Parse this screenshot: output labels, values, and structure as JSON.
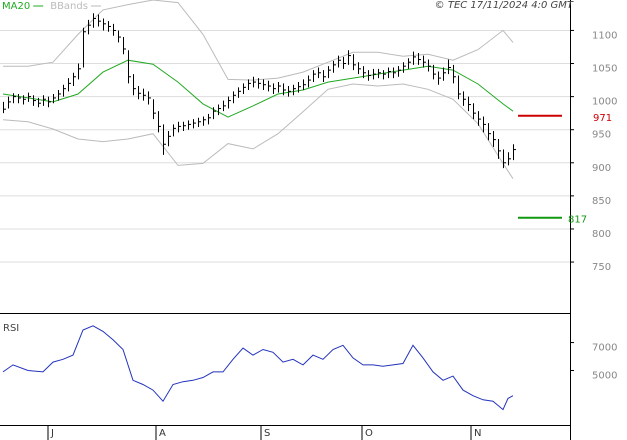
{
  "chart_data": [
    {
      "type": "ohlc",
      "annotation": "© TEC 17/11/2024 4:0 GMT",
      "x": [
        0,
        1,
        2,
        3,
        4,
        5,
        6,
        7,
        8,
        9,
        10,
        11,
        12,
        13,
        14,
        15,
        16,
        17,
        18,
        19,
        20,
        21,
        22,
        23,
        24,
        25,
        26,
        27,
        28,
        29,
        30,
        31,
        32,
        33,
        34,
        35,
        36,
        37,
        38,
        39,
        40,
        41,
        42,
        43,
        44,
        45,
        46,
        47,
        48,
        49,
        50,
        51,
        52,
        53,
        54,
        55,
        56,
        57,
        58,
        59,
        60,
        61,
        62,
        63,
        64,
        65,
        66,
        67,
        68,
        69,
        70,
        71,
        72,
        73,
        74,
        75,
        76,
        77,
        78,
        79,
        80,
        81,
        82,
        83,
        84,
        85,
        86,
        87,
        88,
        89,
        90,
        91,
        92,
        93,
        94,
        95,
        96,
        97,
        98,
        99,
        100,
        101,
        102
      ],
      "high": [
        992,
        1000,
        1005,
        1004,
        1002,
        1006,
        1002,
        998,
        1002,
        1000,
        1004,
        1010,
        1018,
        1028,
        1036,
        1050,
        1104,
        1116,
        1126,
        1124,
        1118,
        1114,
        1110,
        1100,
        1090,
        1070,
        1034,
        1016,
        1012,
        1008,
        996,
        978,
        958,
        948,
        958,
        962,
        962,
        964,
        966,
        968,
        970,
        974,
        984,
        988,
        994,
        1000,
        1008,
        1014,
        1020,
        1026,
        1030,
        1028,
        1026,
        1024,
        1020,
        1022,
        1020,
        1016,
        1018,
        1022,
        1026,
        1032,
        1040,
        1044,
        1040,
        1046,
        1054,
        1062,
        1060,
        1070,
        1064,
        1052,
        1046,
        1040,
        1042,
        1042,
        1040,
        1044,
        1044,
        1046,
        1052,
        1058,
        1068,
        1066,
        1062,
        1056,
        1048,
        1038,
        1044,
        1056,
        1048,
        1032,
        1008,
        1000,
        990,
        978,
        970,
        960,
        948,
        936,
        920,
        916,
        928
      ],
      "low": [
        975,
        982,
        990,
        990,
        988,
        992,
        986,
        984,
        986,
        984,
        990,
        994,
        1000,
        1008,
        1016,
        1026,
        1044,
        1094,
        1104,
        1106,
        1100,
        1098,
        1092,
        1082,
        1064,
        1020,
        1002,
        996,
        994,
        988,
        966,
        946,
        912,
        925,
        940,
        946,
        948,
        950,
        952,
        954,
        956,
        958,
        966,
        972,
        978,
        982,
        990,
        998,
        1004,
        1010,
        1014,
        1012,
        1010,
        1008,
        1004,
        1006,
        1002,
        1000,
        1002,
        1006,
        1010,
        1014,
        1022,
        1028,
        1022,
        1028,
        1036,
        1044,
        1042,
        1048,
        1040,
        1034,
        1028,
        1024,
        1026,
        1028,
        1026,
        1028,
        1028,
        1030,
        1036,
        1042,
        1048,
        1048,
        1044,
        1038,
        1026,
        1018,
        1024,
        1034,
        1020,
        996,
        986,
        978,
        966,
        956,
        946,
        934,
        924,
        906,
        892,
        896,
        904
      ],
      "close": [
        981,
        992,
        1000,
        998,
        996,
        1000,
        994,
        990,
        996,
        992,
        998,
        1004,
        1012,
        1020,
        1030,
        1042,
        1098,
        1108,
        1118,
        1114,
        1110,
        1106,
        1100,
        1090,
        1072,
        1030,
        1012,
        1005,
        1002,
        998,
        975,
        955,
        928,
        940,
        952,
        955,
        956,
        958,
        960,
        962,
        965,
        968,
        978,
        982,
        986,
        994,
        1002,
        1008,
        1014,
        1020,
        1022,
        1020,
        1018,
        1016,
        1012,
        1016,
        1010,
        1008,
        1012,
        1015,
        1018,
        1025,
        1034,
        1036,
        1030,
        1040,
        1048,
        1055,
        1050,
        1062,
        1048,
        1042,
        1036,
        1032,
        1034,
        1036,
        1034,
        1038,
        1036,
        1040,
        1046,
        1052,
        1060,
        1056,
        1052,
        1046,
        1034,
        1028,
        1036,
        1044,
        1030,
        1004,
        996,
        988,
        975,
        966,
        958,
        944,
        935,
        918,
        900,
        906,
        920
      ],
      "color": "#000000",
      "series": [
        {
          "name": "MA20",
          "color": "#22aa22",
          "x": [
            0,
            5,
            10,
            15,
            20,
            25,
            30,
            35,
            40,
            45,
            50,
            55,
            60,
            65,
            70,
            75,
            80,
            85,
            90,
            95,
            100,
            102
          ],
          "values": [
            1004,
            998,
            992,
            1004,
            1037,
            1055,
            1049,
            1022,
            989,
            969,
            986,
            1004,
            1010,
            1022,
            1028,
            1034,
            1040,
            1046,
            1040,
            1019,
            989,
            978
          ]
        },
        {
          "name": "BBands",
          "color": "#bbbbbb",
          "x": [
            0,
            5,
            10,
            15,
            20,
            25,
            30,
            35,
            40,
            45,
            50,
            55,
            60,
            65,
            70,
            75,
            80,
            85,
            90,
            95,
            100,
            102
          ],
          "values": [
            1046,
            1046,
            1052,
            1094,
            1131,
            1139,
            1146,
            1142,
            1094,
            1026,
            1025,
            1028,
            1037,
            1052,
            1067,
            1067,
            1061,
            1064,
            1055,
            1071,
            1100,
            1082
          ],
          "lower": [
            965,
            962,
            951,
            936,
            932,
            936,
            944,
            896,
            899,
            929,
            921,
            944,
            977,
            1011,
            1019,
            1016,
            1019,
            1011,
            996,
            959,
            899,
            876
          ]
        }
      ],
      "levels": [
        {
          "value": 971,
          "color": "#cc0000"
        },
        {
          "value": 817,
          "color": "#119911"
        }
      ],
      "xlim": [
        -0.6,
        113.4
      ],
      "ylim": [
        673,
        1146
      ],
      "yticks": [
        750,
        800,
        850,
        900,
        950,
        1000,
        1050,
        1100
      ],
      "grid": true
    },
    {
      "type": "line",
      "title": "RSI",
      "x": [
        0,
        2,
        5,
        8,
        10,
        12,
        14,
        16,
        18,
        20,
        22,
        24,
        26,
        28,
        30,
        32,
        34,
        36,
        38,
        40,
        42,
        44,
        46,
        48,
        50,
        52,
        54,
        56,
        58,
        60,
        62,
        64,
        66,
        68,
        70,
        72,
        74,
        76,
        78,
        80,
        82,
        84,
        86,
        88,
        90,
        92,
        94,
        96,
        98,
        100,
        101,
        102
      ],
      "values": [
        49,
        54,
        50,
        49,
        56,
        58,
        61,
        79,
        82,
        78,
        72,
        65,
        43,
        40,
        36,
        28,
        40,
        42,
        43,
        45,
        49,
        49,
        58,
        66,
        61,
        65,
        63,
        56,
        58,
        54,
        61,
        58,
        65,
        68,
        59,
        54,
        54,
        53,
        54,
        55,
        68,
        59,
        49,
        43,
        46,
        36,
        32,
        29,
        28,
        22,
        30,
        32
      ],
      "color": "#2233bb",
      "xlim": [
        -0.6,
        113.4
      ],
      "ylim": [
        11,
        89
      ],
      "yticks": [
        {
          "value": 70,
          "label": "7000"
        },
        {
          "value": 50,
          "label": "5000"
        }
      ],
      "xticks": [
        {
          "value": 9,
          "label": "J"
        },
        {
          "value": 30.6,
          "label": "A"
        },
        {
          "value": 51.6,
          "label": "S"
        },
        {
          "value": 71.8,
          "label": "O"
        },
        {
          "value": 93.6,
          "label": "N"
        }
      ]
    }
  ]
}
